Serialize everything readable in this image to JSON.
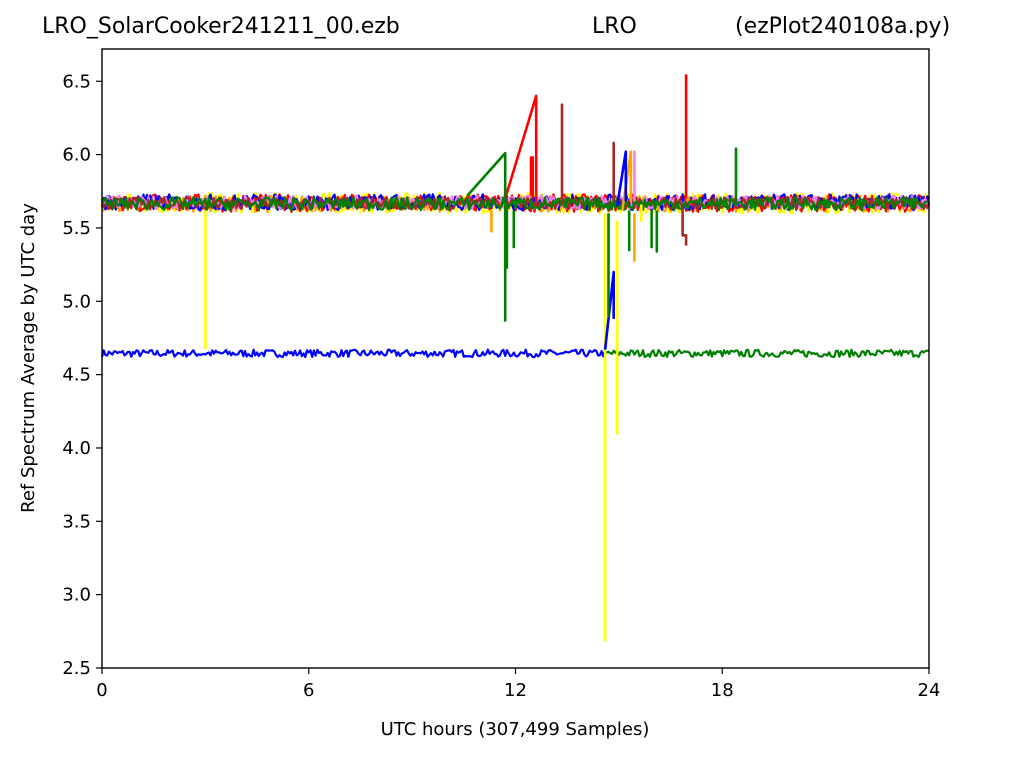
{
  "header": {
    "left": "LRO_SolarCooker241211_00.ezb",
    "center": "LRO",
    "right": "(ezPlot240108a.py)"
  },
  "chart_data": {
    "type": "line",
    "title": "LRO_SolarCooker241211_00.ezb LRO (ezPlot240108a.py)",
    "xlabel": "UTC hours  (307,499 Samples)",
    "ylabel": "Ref Spectrum Average by UTC day",
    "xlim": [
      0,
      24
    ],
    "ylim": [
      2.5,
      6.72
    ],
    "xticks": [
      0,
      6,
      12,
      18,
      24
    ],
    "yticks": [
      2.5,
      3.0,
      3.5,
      4.0,
      4.5,
      5.0,
      5.5,
      6.0,
      6.5
    ],
    "grid": false,
    "legend": "none",
    "colors": {
      "red": "#ff0000",
      "brown": "#a52a2a",
      "orange": "#ffa500",
      "yellow": "#ffff00",
      "green": "#008000",
      "blue": "#0000ff",
      "violet": "#ee82ee"
    },
    "bands": [
      {
        "color": "blue",
        "x": [
          0,
          14.6
        ],
        "y_low": 4.62,
        "y_high": 4.67
      },
      {
        "color": "green",
        "x": [
          14.6,
          24
        ],
        "y_low": 4.62,
        "y_high": 4.67
      },
      {
        "color": "yellow",
        "x": [
          0,
          24
        ],
        "y_low": 5.6,
        "y_high": 5.74
      },
      {
        "color": "orange",
        "x": [
          0,
          24
        ],
        "y_low": 5.61,
        "y_high": 5.72
      },
      {
        "color": "red",
        "x": [
          0,
          24
        ],
        "y_low": 5.61,
        "y_high": 5.73
      },
      {
        "color": "blue",
        "x": [
          0,
          24
        ],
        "y_low": 5.62,
        "y_high": 5.73
      },
      {
        "color": "violet",
        "x": [
          0,
          24
        ],
        "y_low": 5.63,
        "y_high": 5.72
      },
      {
        "color": "brown",
        "x": [
          0,
          24
        ],
        "y_low": 5.63,
        "y_high": 5.71
      },
      {
        "color": "green",
        "x": [
          0,
          24
        ],
        "y_low": 5.62,
        "y_high": 5.71
      }
    ],
    "series": [
      {
        "color": "red",
        "x": [
          11.7,
          12.6,
          12.6,
          12.6
        ],
        "y": [
          5.7,
          6.4,
          5.7,
          5.68
        ]
      },
      {
        "color": "red",
        "x": [
          12.45,
          12.45,
          12.5,
          12.5
        ],
        "y": [
          5.72,
          5.98,
          5.98,
          5.7
        ]
      },
      {
        "color": "red",
        "x": [
          16.95,
          16.95,
          16.95
        ],
        "y": [
          5.7,
          6.54,
          5.7
        ]
      },
      {
        "color": "brown",
        "x": [
          13.35,
          13.35,
          13.35
        ],
        "y": [
          5.68,
          6.34,
          5.68
        ]
      },
      {
        "color": "brown",
        "x": [
          14.85,
          14.85,
          14.85
        ],
        "y": [
          5.68,
          6.08,
          5.68
        ]
      },
      {
        "color": "brown",
        "x": [
          16.85,
          16.85,
          16.95,
          16.95
        ],
        "y": [
          5.64,
          5.45,
          5.45,
          5.38
        ]
      },
      {
        "color": "yellow",
        "x": [
          3.0,
          3.0,
          3.0
        ],
        "y": [
          5.62,
          4.68,
          5.62
        ]
      },
      {
        "color": "yellow",
        "x": [
          14.6,
          14.6,
          14.6
        ],
        "y": [
          5.6,
          2.69,
          5.6
        ]
      },
      {
        "color": "yellow",
        "x": [
          14.95,
          14.95,
          14.95
        ],
        "y": [
          5.55,
          4.1,
          5.55
        ]
      },
      {
        "color": "yellow",
        "x": [
          15.65,
          15.65,
          15.65
        ],
        "y": [
          5.66,
          5.55,
          5.66
        ]
      },
      {
        "color": "orange",
        "x": [
          11.3,
          11.3
        ],
        "y": [
          5.62,
          5.47
        ]
      },
      {
        "color": "orange",
        "x": [
          15.1,
          15.35,
          15.35
        ],
        "y": [
          5.62,
          6.02,
          5.68
        ]
      },
      {
        "color": "orange",
        "x": [
          15.45,
          15.45
        ],
        "y": [
          5.6,
          5.27
        ]
      },
      {
        "color": "violet",
        "x": [
          15.45,
          15.45,
          15.45
        ],
        "y": [
          5.68,
          6.02,
          5.68
        ]
      },
      {
        "color": "blue",
        "x": [
          14.6,
          14.85,
          14.85
        ],
        "y": [
          4.67,
          5.2,
          4.88
        ]
      },
      {
        "color": "blue",
        "x": [
          14.95,
          15.2,
          15.2
        ],
        "y": [
          5.65,
          6.02,
          5.68
        ]
      },
      {
        "color": "green",
        "x": [
          10.6,
          11.7,
          11.7,
          11.7
        ],
        "y": [
          5.72,
          6.01,
          4.87,
          5.72
        ]
      },
      {
        "color": "green",
        "x": [
          11.75,
          11.75,
          11.75
        ],
        "y": [
          5.62,
          5.23,
          5.62
        ]
      },
      {
        "color": "green",
        "x": [
          11.95,
          11.95,
          11.95
        ],
        "y": [
          5.62,
          5.37,
          5.62
        ]
      },
      {
        "color": "green",
        "x": [
          14.7,
          14.7,
          14.7
        ],
        "y": [
          5.6,
          4.9,
          5.6
        ]
      },
      {
        "color": "green",
        "x": [
          15.3,
          15.3,
          15.3
        ],
        "y": [
          5.62,
          5.35,
          5.62
        ]
      },
      {
        "color": "green",
        "x": [
          15.95,
          15.95,
          15.95
        ],
        "y": [
          5.62,
          5.37,
          5.62
        ]
      },
      {
        "color": "green",
        "x": [
          16.1,
          16.1,
          16.1
        ],
        "y": [
          5.62,
          5.34,
          5.62
        ]
      },
      {
        "color": "green",
        "x": [
          18.4,
          18.4,
          18.4
        ],
        "y": [
          5.68,
          6.04,
          5.68
        ]
      }
    ]
  }
}
